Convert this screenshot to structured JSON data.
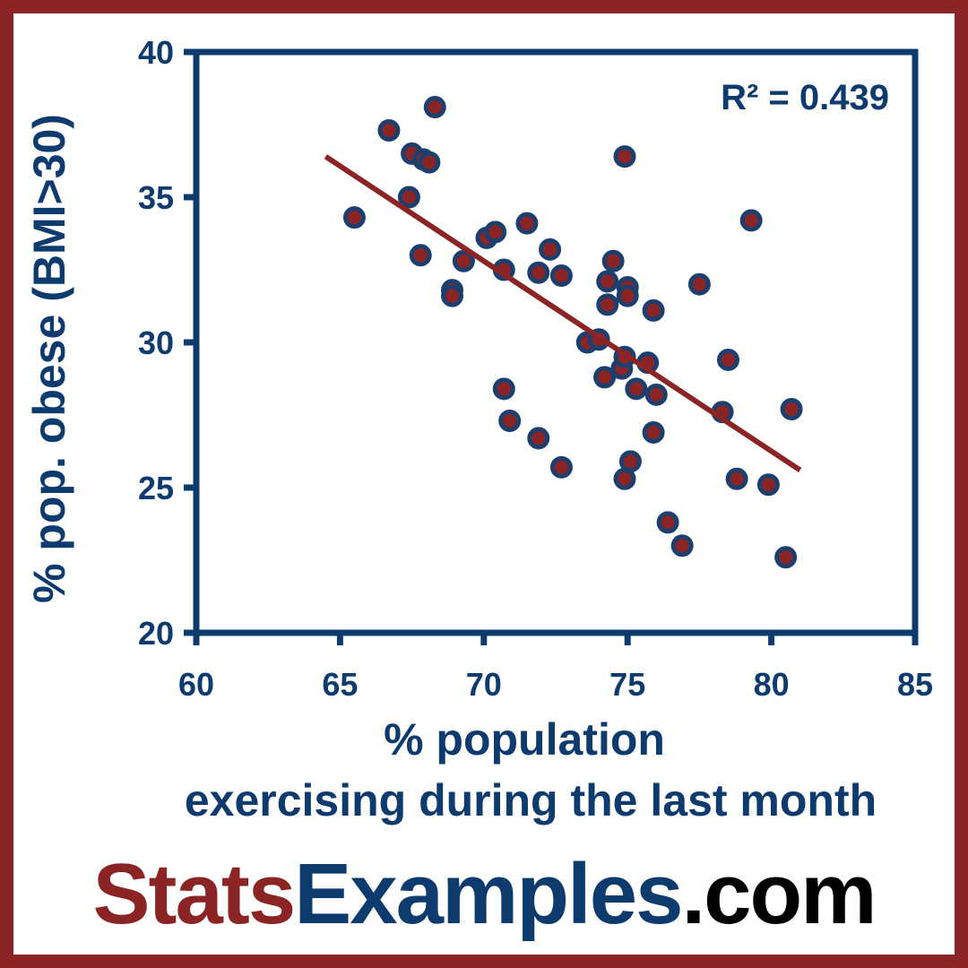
{
  "colors": {
    "frame": "#8b2525",
    "navy": "#0d3b6e",
    "point_fill": "#8b2525",
    "point_edge": "#1d3f6e",
    "trend": "#8b2525",
    "brand_stats": "#8b2525",
    "brand_examples": "#0d3b6e",
    "brand_com": "#000000"
  },
  "chart_data": {
    "type": "scatter",
    "xlabel_line1": "% population",
    "xlabel_line2": "exercising during the last month",
    "ylabel": "% pop. obese (BMI>30)",
    "xlim": [
      60,
      85
    ],
    "ylim": [
      20,
      40
    ],
    "xticks": [
      60,
      65,
      70,
      75,
      80,
      85
    ],
    "yticks": [
      20,
      25,
      30,
      35,
      40
    ],
    "annotation": "R² = 0.439",
    "grid": false,
    "legend": "none",
    "points": [
      [
        65.5,
        34.3
      ],
      [
        66.7,
        37.3
      ],
      [
        67.4,
        35.0
      ],
      [
        67.5,
        36.5
      ],
      [
        67.8,
        33.0
      ],
      [
        67.9,
        36.3
      ],
      [
        68.1,
        36.2
      ],
      [
        68.3,
        38.1
      ],
      [
        68.9,
        31.8
      ],
      [
        68.9,
        31.6
      ],
      [
        69.3,
        32.8
      ],
      [
        70.1,
        33.6
      ],
      [
        70.4,
        33.8
      ],
      [
        70.7,
        32.5
      ],
      [
        70.7,
        28.4
      ],
      [
        70.9,
        27.3
      ],
      [
        71.5,
        34.1
      ],
      [
        71.9,
        32.4
      ],
      [
        71.9,
        26.7
      ],
      [
        72.3,
        33.2
      ],
      [
        72.7,
        32.3
      ],
      [
        72.7,
        25.7
      ],
      [
        73.6,
        30.0
      ],
      [
        74.0,
        30.1
      ],
      [
        74.2,
        28.8
      ],
      [
        74.3,
        32.1
      ],
      [
        74.3,
        31.3
      ],
      [
        74.5,
        32.8
      ],
      [
        74.8,
        29.1
      ],
      [
        74.9,
        29.5
      ],
      [
        74.9,
        36.4
      ],
      [
        74.9,
        25.3
      ],
      [
        75.0,
        31.9
      ],
      [
        75.0,
        31.6
      ],
      [
        75.1,
        25.9
      ],
      [
        75.3,
        28.4
      ],
      [
        75.7,
        29.3
      ],
      [
        75.9,
        31.1
      ],
      [
        75.9,
        26.9
      ],
      [
        76.0,
        28.2
      ],
      [
        76.4,
        23.8
      ],
      [
        76.9,
        23.0
      ],
      [
        77.5,
        32.0
      ],
      [
        78.3,
        27.6
      ],
      [
        78.5,
        29.4
      ],
      [
        78.8,
        25.3
      ],
      [
        79.3,
        34.2
      ],
      [
        79.9,
        25.1
      ],
      [
        80.5,
        22.6
      ],
      [
        80.7,
        27.7
      ]
    ],
    "trendline": {
      "x": [
        64.5,
        81.0
      ],
      "y": [
        36.4,
        25.6
      ]
    }
  },
  "brand": {
    "part1": "Stats",
    "part2": "Examples",
    "part3": ".com"
  }
}
